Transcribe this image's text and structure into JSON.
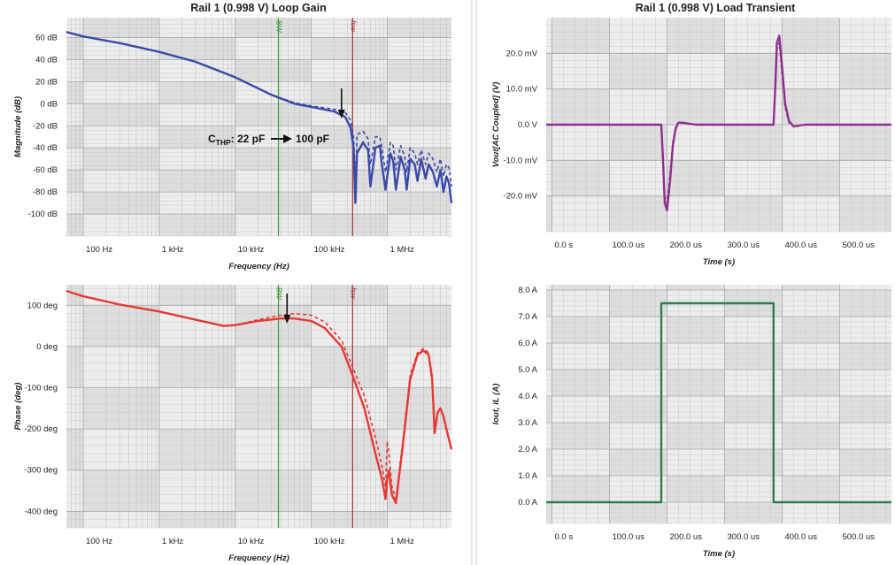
{
  "colors": {
    "magnitude": "#3a4aa8",
    "phase": "#e53935",
    "vout": "#8e2f8e",
    "iout": "#2e7d4f",
    "bw_marker": "#3a9a3a",
    "fsw_marker": "#a03030",
    "band_dark": "#dedede",
    "band_light": "#ededed"
  },
  "markers": {
    "bw_label": "BW",
    "fsw_label": "fsw",
    "bw_hz": 37000,
    "fsw_hz": 350000
  },
  "annotation": {
    "prefix": "C",
    "subscript": "THP",
    "from": ": 22 pF",
    "to": "100 pF"
  },
  "chart_data": [
    {
      "type": "line",
      "title": "Rail 1 (0.998 V) Loop Gain",
      "xlabel": "Frequency (Hz)",
      "ylabel": "Magnitude (dB)",
      "xscale": "log",
      "xlim": [
        60,
        7000000
      ],
      "ylim": [
        -120,
        78
      ],
      "xticks": [
        {
          "v": 100,
          "label": "100 Hz"
        },
        {
          "v": 1000,
          "label": "1 kHz"
        },
        {
          "v": 10000,
          "label": "10 kHz"
        },
        {
          "v": 100000,
          "label": "100 kHz"
        },
        {
          "v": 1000000,
          "label": "1 MHz"
        }
      ],
      "yticks": [
        {
          "v": 60,
          "label": "60 dB"
        },
        {
          "v": 40,
          "label": "40 dB"
        },
        {
          "v": 20,
          "label": "20 dB"
        },
        {
          "v": 0,
          "label": "0 dB"
        },
        {
          "v": -20,
          "label": "-20 dB"
        },
        {
          "v": -40,
          "label": "-40 dB"
        },
        {
          "v": -60,
          "label": "-60 dB"
        },
        {
          "v": -80,
          "label": "-80 dB"
        },
        {
          "v": -100,
          "label": "-100 dB"
        }
      ],
      "series": [
        {
          "style": "solid",
          "x": [
            60,
            100,
            300,
            1000,
            3000,
            10000,
            30000,
            60000,
            100000,
            200000,
            280000,
            330000,
            360000,
            380000,
            400000,
            480000,
            560000,
            600000,
            700000,
            800000,
            850000,
            950000,
            1100000,
            1200000,
            1300000,
            1500000,
            1700000,
            1800000,
            2000000,
            2300000,
            2500000,
            2800000,
            3200000,
            3500000,
            4000000,
            4500000,
            5000000,
            5500000,
            6000000,
            6500000,
            7000000
          ],
          "y": [
            65,
            61,
            55,
            47,
            38,
            24,
            8,
            0,
            -3,
            -7,
            -12,
            -22,
            -40,
            -90,
            -45,
            -35,
            -42,
            -75,
            -40,
            -38,
            -55,
            -78,
            -45,
            -52,
            -78,
            -48,
            -60,
            -78,
            -50,
            -55,
            -70,
            -50,
            -68,
            -55,
            -62,
            -75,
            -60,
            -80,
            -66,
            -72,
            -90
          ]
        },
        {
          "style": "dashed",
          "x": [
            60,
            100,
            300,
            1000,
            3000,
            10000,
            30000,
            60000,
            100000,
            200000,
            280000,
            330000,
            360000,
            380000,
            400000,
            480000,
            560000,
            600000,
            700000,
            800000,
            850000,
            950000,
            1100000,
            1200000,
            1300000,
            1500000,
            1700000,
            1800000,
            2000000,
            2300000,
            2500000,
            2800000,
            3200000,
            3500000,
            4000000,
            4500000,
            5000000,
            5500000,
            6000000,
            6500000,
            7000000
          ],
          "y": [
            65,
            61,
            55,
            47,
            38,
            24,
            8,
            1,
            -2,
            -5,
            -8,
            -15,
            -30,
            -70,
            -28,
            -25,
            -32,
            -55,
            -30,
            -30,
            -40,
            -62,
            -35,
            -38,
            -60,
            -38,
            -48,
            -62,
            -40,
            -45,
            -55,
            -42,
            -55,
            -45,
            -50,
            -62,
            -50,
            -66,
            -55,
            -58,
            -75
          ]
        }
      ]
    },
    {
      "type": "line",
      "title": "Rail 1 (0.998 V) Load Transient",
      "xlabel": "Time (s)",
      "ylabel": "Vout[AC Coupled] (V)",
      "xlim": [
        -10,
        590
      ],
      "ylim": [
        -30,
        30
      ],
      "xticks": [
        {
          "v": 0,
          "label": "0.0 s"
        },
        {
          "v": 100,
          "label": "100.0 us"
        },
        {
          "v": 200,
          "label": "200.0 us"
        },
        {
          "v": 300,
          "label": "300.0 us"
        },
        {
          "v": 400,
          "label": "400.0 us"
        },
        {
          "v": 500,
          "label": "500.0 us"
        }
      ],
      "yticks": [
        {
          "v": 20,
          "label": "20.0 mV"
        },
        {
          "v": 10,
          "label": "10.0 mV"
        },
        {
          "v": 0,
          "label": "0.0 V"
        },
        {
          "v": -10,
          "label": "-10.0 mV"
        },
        {
          "v": -20,
          "label": "-20.0 mV"
        }
      ],
      "series": [
        {
          "style": "solid",
          "x": [
            -10,
            190,
            193,
            196,
            200,
            205,
            210,
            215,
            220,
            230,
            250,
            385,
            388,
            391,
            395,
            400,
            405,
            412,
            420,
            440,
            590
          ],
          "y": [
            0,
            0,
            -10,
            -22,
            -24,
            -16,
            -6,
            -1,
            0.6,
            0.5,
            0,
            0,
            10,
            23,
            25,
            16,
            6,
            1,
            -0.5,
            0,
            0
          ]
        },
        {
          "style": "dashed",
          "x": [
            -10,
            190,
            193,
            196,
            200,
            205,
            210,
            215,
            220,
            230,
            250,
            385,
            388,
            391,
            395,
            400,
            405,
            412,
            420,
            440,
            590
          ],
          "y": [
            0,
            0,
            -9,
            -20,
            -22,
            -14,
            -5,
            -0.5,
            0.8,
            0.4,
            0,
            0,
            9,
            21,
            23,
            14,
            5,
            0.5,
            -0.6,
            0,
            0
          ]
        }
      ]
    },
    {
      "type": "line",
      "xlabel": "Frequency (Hz)",
      "ylabel": "Phase (deg)",
      "xscale": "log",
      "xlim": [
        60,
        7000000
      ],
      "ylim": [
        -440,
        150
      ],
      "xticks": [
        {
          "v": 100,
          "label": "100 Hz"
        },
        {
          "v": 1000,
          "label": "1 kHz"
        },
        {
          "v": 10000,
          "label": "10 kHz"
        },
        {
          "v": 100000,
          "label": "100 kHz"
        },
        {
          "v": 1000000,
          "label": "1 MHz"
        }
      ],
      "yticks": [
        {
          "v": 100,
          "label": "100 deg"
        },
        {
          "v": 0,
          "label": "0 deg"
        },
        {
          "v": -100,
          "label": "-100 deg"
        },
        {
          "v": -200,
          "label": "-200 deg"
        },
        {
          "v": -300,
          "label": "-300 deg"
        },
        {
          "v": -400,
          "label": "-400 deg"
        }
      ],
      "series": [
        {
          "style": "solid",
          "x": [
            60,
            100,
            300,
            1000,
            3000,
            7000,
            10000,
            20000,
            40000,
            60000,
            100000,
            150000,
            250000,
            350000,
            500000,
            700000,
            850000,
            950000,
            1000000,
            1050000,
            1150000,
            1300000,
            1600000,
            2000000,
            2500000,
            3000000,
            3500000,
            3900000,
            4200000,
            4600000,
            5000000,
            5500000,
            6000000,
            7000000
          ],
          "y": [
            135,
            122,
            102,
            85,
            65,
            50,
            52,
            62,
            68,
            68,
            62,
            45,
            0,
            -70,
            -150,
            -260,
            -320,
            -370,
            -320,
            -300,
            -360,
            -380,
            -240,
            -80,
            -20,
            -10,
            -20,
            -80,
            -210,
            -160,
            -150,
            -170,
            -200,
            -250
          ]
        },
        {
          "style": "dashed",
          "x": [
            60,
            100,
            300,
            1000,
            3000,
            7000,
            10000,
            20000,
            40000,
            60000,
            100000,
            150000,
            250000,
            350000,
            500000,
            700000,
            850000,
            950000,
            1000000,
            1050000,
            1150000,
            1300000,
            1600000,
            2000000,
            2500000,
            3000000,
            3500000,
            3900000
          ],
          "y": [
            135,
            122,
            102,
            85,
            65,
            50,
            52,
            65,
            76,
            80,
            76,
            60,
            15,
            -50,
            -120,
            -220,
            -290,
            -340,
            -230,
            -260,
            -340,
            -370,
            -230,
            -70,
            -15,
            -5,
            -15,
            -70
          ]
        }
      ]
    },
    {
      "type": "line",
      "xlabel": "Time (s)",
      "ylabel": "Iout, iL (A)",
      "xlim": [
        -10,
        590
      ],
      "ylim": [
        -0.8,
        8.2
      ],
      "xticks": [
        {
          "v": 0,
          "label": "0.0 s"
        },
        {
          "v": 100,
          "label": "100.0 us"
        },
        {
          "v": 200,
          "label": "200.0 us"
        },
        {
          "v": 300,
          "label": "300.0 us"
        },
        {
          "v": 400,
          "label": "400.0 us"
        },
        {
          "v": 500,
          "label": "500.0 us"
        }
      ],
      "yticks": [
        {
          "v": 8,
          "label": "8.0 A"
        },
        {
          "v": 7,
          "label": "7.0 A"
        },
        {
          "v": 6,
          "label": "6.0 A"
        },
        {
          "v": 5,
          "label": "5.0 A"
        },
        {
          "v": 4,
          "label": "4.0 A"
        },
        {
          "v": 3,
          "label": "3.0 A"
        },
        {
          "v": 2,
          "label": "2.0 A"
        },
        {
          "v": 1,
          "label": "1.0 A"
        },
        {
          "v": 0,
          "label": "0.0 A"
        }
      ],
      "series": [
        {
          "style": "solid",
          "x": [
            -10,
            190,
            190,
            385,
            385,
            590
          ],
          "y": [
            0,
            0,
            7.5,
            7.5,
            0,
            0
          ]
        },
        {
          "style": "dashed",
          "x": [
            -10,
            190,
            190,
            385,
            385,
            590
          ],
          "y": [
            0,
            0,
            7.5,
            7.5,
            0,
            0
          ]
        }
      ]
    }
  ]
}
